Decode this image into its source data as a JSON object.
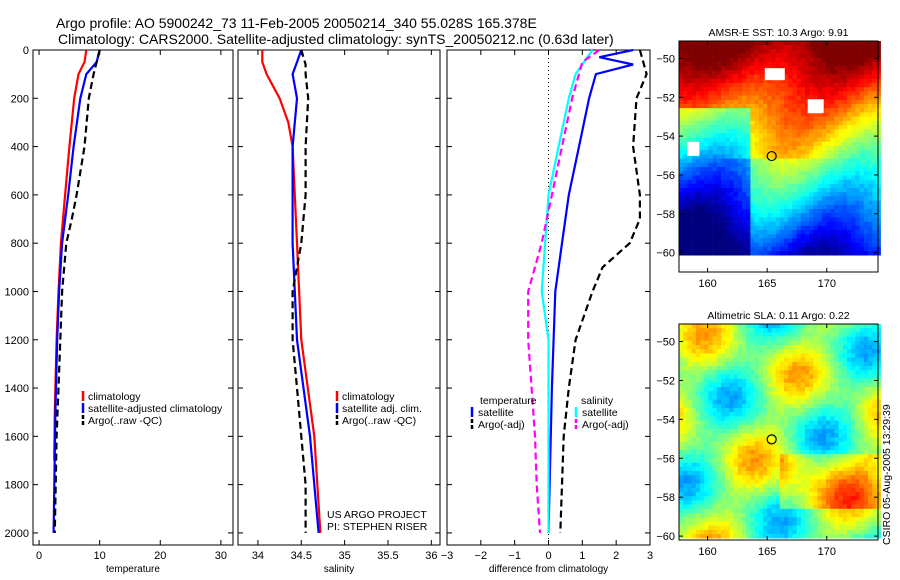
{
  "title_line1": "Argo profile: AO 5900242_73 11-Feb-2005 20050214_340 55.028S 165.378E",
  "title_line2": "Climatology: CARS2000. Satellite-adjusted climatology: synTS_20050212.nc (0.63d later)",
  "side_stamp": "CSIRO 05-Aug-2005 13:29:39",
  "colors": {
    "climatology": "#ff0000",
    "satellite": "#0000ff",
    "argo": "#000000",
    "sal_satellite": "#00ffff",
    "sal_argo": "#ff00ff"
  },
  "chart_data": [
    {
      "type": "line",
      "xlabel": "temperature",
      "ylabel": "",
      "xlim": [
        -1,
        32
      ],
      "ylim": [
        2050,
        0
      ],
      "xticks": [
        0,
        10,
        20,
        30
      ],
      "yticks": [
        0,
        200,
        400,
        600,
        800,
        1000,
        1200,
        1400,
        1600,
        1800,
        2000
      ],
      "legend": {
        "placement": "bottom-right",
        "entries": [
          "climatology",
          "satellite-adjusted climatology",
          "Argo(..raw -QC)"
        ]
      },
      "series": [
        {
          "name": "climatology",
          "color": "#ff0000",
          "dash": false,
          "points": [
            [
              7.8,
              0
            ],
            [
              7.5,
              50
            ],
            [
              6.5,
              100
            ],
            [
              5.8,
              200
            ],
            [
              5.0,
              400
            ],
            [
              4.3,
              600
            ],
            [
              3.6,
              800
            ],
            [
              3.2,
              1000
            ],
            [
              2.9,
              1200
            ],
            [
              2.6,
              1500
            ],
            [
              2.5,
              1700
            ]
          ]
        },
        {
          "name": "satellite-adjusted climatology",
          "color": "#0000ff",
          "dash": false,
          "points": [
            [
              10.0,
              0
            ],
            [
              9.5,
              50
            ],
            [
              7.8,
              100
            ],
            [
              6.8,
              200
            ],
            [
              5.7,
              400
            ],
            [
              4.8,
              600
            ],
            [
              3.8,
              800
            ],
            [
              3.3,
              1000
            ],
            [
              3.0,
              1200
            ],
            [
              2.7,
              1500
            ],
            [
              2.4,
              2000
            ]
          ]
        },
        {
          "name": "Argo(..raw -QC)",
          "color": "#000000",
          "dash": true,
          "points": [
            [
              10.0,
              0
            ],
            [
              9.0,
              100
            ],
            [
              8.2,
              200
            ],
            [
              7.5,
              400
            ],
            [
              6.2,
              600
            ],
            [
              5.4,
              700
            ],
            [
              4.5,
              800
            ],
            [
              3.8,
              1000
            ],
            [
              3.5,
              1200
            ],
            [
              3.2,
              1400
            ],
            [
              2.9,
              1600
            ],
            [
              2.6,
              2000
            ]
          ]
        }
      ]
    },
    {
      "type": "line",
      "xlabel": "salinity",
      "xlim": [
        33.77,
        36.1
      ],
      "ylim": [
        2050,
        0
      ],
      "xticks": [
        34,
        34.5,
        35,
        35.5,
        36
      ],
      "legend": {
        "placement": "bottom-right",
        "entries": [
          "climatology",
          "satellite adj. clim.",
          "Argo(..raw -QC)"
        ]
      },
      "annotation": [
        "US ARGO PROJECT",
        "PI: STEPHEN RISER"
      ],
      "series": [
        {
          "name": "climatology",
          "color": "#ff0000",
          "dash": false,
          "points": [
            [
              34.05,
              0
            ],
            [
              34.05,
              50
            ],
            [
              34.1,
              100
            ],
            [
              34.25,
              200
            ],
            [
              34.35,
              300
            ],
            [
              34.4,
              400
            ],
            [
              34.45,
              800
            ],
            [
              34.5,
              1200
            ],
            [
              34.65,
              1600
            ],
            [
              34.72,
              2000
            ]
          ]
        },
        {
          "name": "satellite adj. clim.",
          "color": "#0000ff",
          "dash": false,
          "points": [
            [
              34.5,
              0
            ],
            [
              34.45,
              50
            ],
            [
              34.4,
              100
            ],
            [
              34.45,
              200
            ],
            [
              34.4,
              400
            ],
            [
              34.4,
              800
            ],
            [
              34.45,
              1200
            ],
            [
              34.6,
              1600
            ],
            [
              34.7,
              2000
            ]
          ]
        },
        {
          "name": "Argo(..raw -QC)",
          "color": "#000000",
          "dash": true,
          "points": [
            [
              34.5,
              0
            ],
            [
              34.55,
              60
            ],
            [
              34.55,
              100
            ],
            [
              34.58,
              200
            ],
            [
              34.55,
              400
            ],
            [
              34.55,
              600
            ],
            [
              34.5,
              800
            ],
            [
              34.4,
              1000
            ],
            [
              34.4,
              1200
            ],
            [
              34.45,
              1400
            ],
            [
              34.5,
              1600
            ],
            [
              34.55,
              1800
            ],
            [
              34.55,
              2000
            ]
          ]
        }
      ]
    },
    {
      "type": "line",
      "xlabel": "difference from climatology",
      "xlim": [
        -3,
        3
      ],
      "ylim": [
        2050,
        0
      ],
      "xticks": [
        -3,
        -2,
        -1,
        0,
        1,
        2,
        3
      ],
      "legend": {
        "placement": "bottom",
        "temp_header": "temperature",
        "sal_header": "salinity",
        "entries": [
          "satellite",
          "Argo(-adj)",
          "satellite",
          "Argo(-adj)"
        ]
      },
      "series": [
        {
          "name": "temperature satellite",
          "color": "#0000ff",
          "dash": false,
          "points": [
            [
              2.5,
              0
            ],
            [
              1.5,
              30
            ],
            [
              2.5,
              60
            ],
            [
              1.4,
              100
            ],
            [
              1.2,
              200
            ],
            [
              0.9,
              400
            ],
            [
              0.6,
              600
            ],
            [
              0.4,
              800
            ],
            [
              0.2,
              1000
            ],
            [
              0.1,
              1400
            ],
            [
              0.0,
              2000
            ]
          ]
        },
        {
          "name": "temperature Argo(-adj)",
          "color": "#000000",
          "dash": true,
          "points": [
            [
              2.7,
              0
            ],
            [
              2.9,
              100
            ],
            [
              2.6,
              200
            ],
            [
              2.5,
              400
            ],
            [
              2.7,
              600
            ],
            [
              2.7,
              700
            ],
            [
              2.4,
              800
            ],
            [
              1.6,
              900
            ],
            [
              1.3,
              1000
            ],
            [
              0.8,
              1200
            ],
            [
              0.6,
              1400
            ],
            [
              0.45,
              1600
            ],
            [
              0.4,
              1800
            ],
            [
              0.35,
              2000
            ]
          ]
        },
        {
          "name": "salinity satellite",
          "color": "#00ffff",
          "dash": false,
          "points": [
            [
              1.3,
              0
            ],
            [
              0.8,
              100
            ],
            [
              0.6,
              200
            ],
            [
              0.3,
              400
            ],
            [
              0.0,
              600
            ],
            [
              -0.1,
              800
            ],
            [
              -0.2,
              1000
            ],
            [
              0.0,
              1200
            ],
            [
              0.0,
              2000
            ]
          ]
        },
        {
          "name": "salinity Argo(-adj)",
          "color": "#ff00ff",
          "dash": true,
          "points": [
            [
              1.5,
              0
            ],
            [
              1.0,
              50
            ],
            [
              0.9,
              100
            ],
            [
              0.7,
              200
            ],
            [
              0.4,
              400
            ],
            [
              0.1,
              600
            ],
            [
              -0.2,
              800
            ],
            [
              -0.6,
              1000
            ],
            [
              -0.6,
              1200
            ],
            [
              -0.5,
              1400
            ],
            [
              -0.4,
              1600
            ],
            [
              -0.35,
              1800
            ],
            [
              -0.25,
              2000
            ]
          ]
        }
      ]
    },
    {
      "type": "heatmap",
      "title": "AMSR-E SST: 10.3 Argo: 9.91",
      "xlim": [
        157.6,
        174.3
      ],
      "ylim": [
        -61,
        -49.1
      ],
      "xticks": [
        160,
        165,
        170
      ],
      "yticks": [
        -50,
        -52,
        -54,
        -56,
        -58,
        -60
      ],
      "marker": {
        "lon": 165.378,
        "lat": -55.028
      }
    },
    {
      "type": "heatmap",
      "title": "Altimetric SLA: 0.11 Argo: 0.22",
      "xlim": [
        157.6,
        174.3
      ],
      "ylim": [
        -60.2,
        -49.1
      ],
      "xticks": [
        160,
        165,
        170
      ],
      "yticks": [
        -50,
        -52,
        -54,
        -56,
        -58,
        -60
      ],
      "marker": {
        "lon": 165.378,
        "lat": -55.028
      }
    }
  ]
}
